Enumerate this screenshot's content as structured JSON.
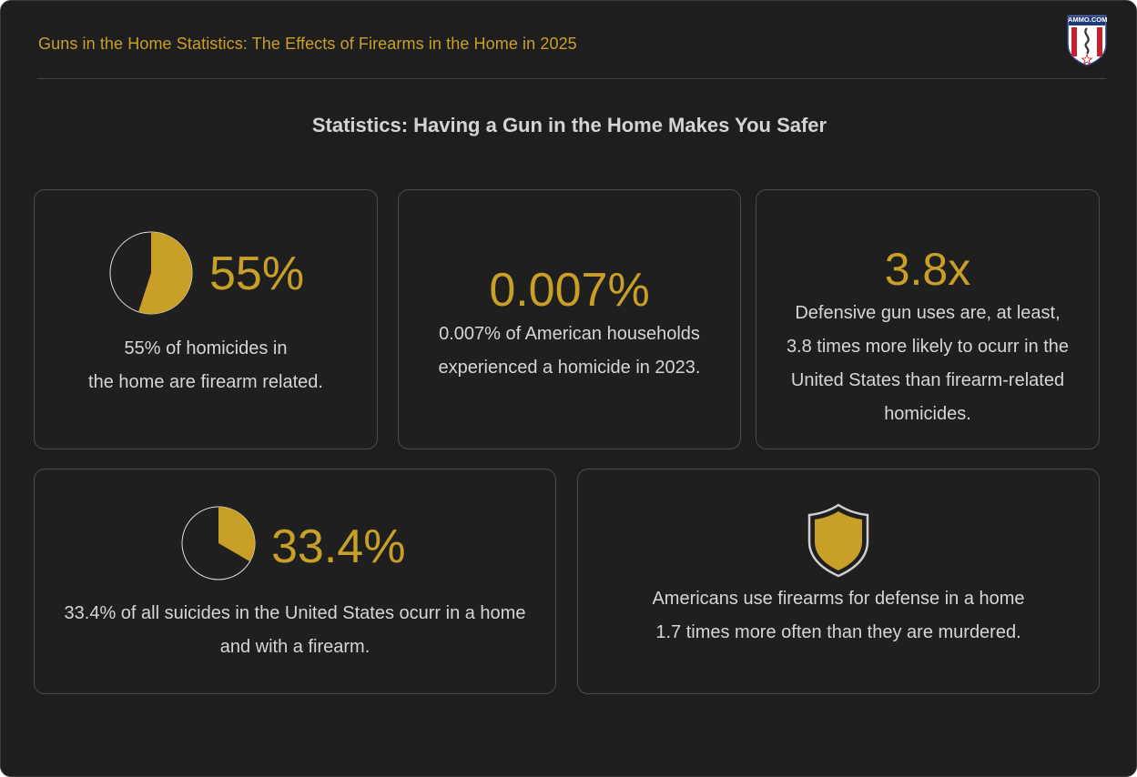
{
  "header": {
    "title": "Guns in the Home Statistics: The Effects of Firearms in the Home in 2025",
    "logo_text": "AMMO.COM"
  },
  "section": {
    "title": "Statistics: Having a Gun in the Home Makes You Safer"
  },
  "colors": {
    "accent": "#c9a027",
    "background": "#1e1e1e",
    "text": "#d6d6d6"
  },
  "cards": [
    {
      "value": "55%",
      "pie_fraction": 0.55,
      "lines": [
        "55% of homicides in",
        "the home are firearm related."
      ]
    },
    {
      "value": "0.007%",
      "lines": [
        "0.007% of American households",
        "experienced a homicide in 2023."
      ]
    },
    {
      "value": "3.8x",
      "lines": [
        "Defensive gun uses are, at least,",
        "3.8 times more likely to ocurr in the",
        "United States than firearm-related",
        "homicides."
      ]
    },
    {
      "value": "33.4%",
      "pie_fraction": 0.334,
      "lines": [
        "33.4% of all suicides in the United States ocurr in a home",
        "and with a firearm."
      ]
    },
    {
      "icon": "shield-icon",
      "lines": [
        "Americans use firearms for defense in a home",
        "1.7 times more often than they are murdered."
      ]
    }
  ]
}
